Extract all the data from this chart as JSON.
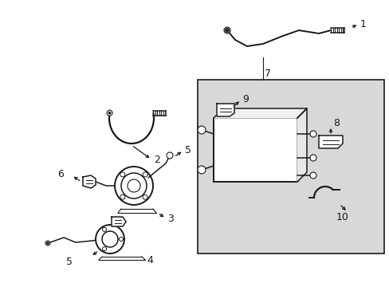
{
  "bg_color": "#ffffff",
  "line_color": "#1a1a1a",
  "box_bg": "#d8d8d8",
  "figsize": [
    4.89,
    3.6
  ],
  "dpi": 100
}
